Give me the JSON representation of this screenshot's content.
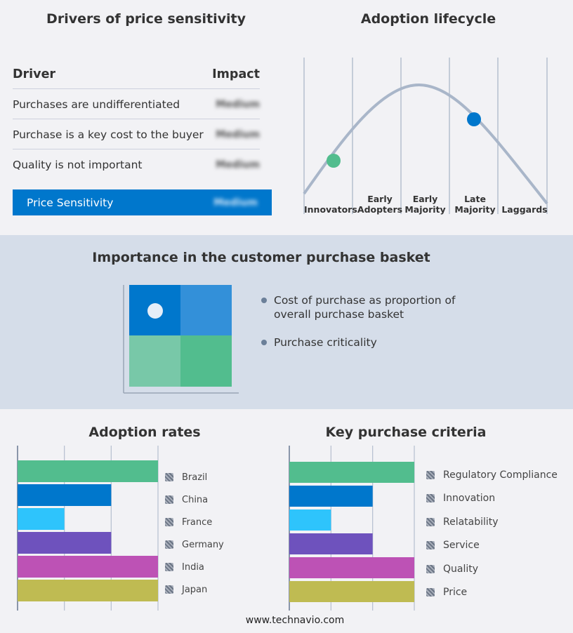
{
  "drivers": {
    "title": "Drivers of price sensitivity",
    "col_driver": "Driver",
    "col_impact": "Impact",
    "rows": [
      {
        "driver": "Purchases are undifferentiated",
        "impact": "Medium"
      },
      {
        "driver": "Purchase is a key cost to the buyer",
        "impact": "Medium"
      },
      {
        "driver": "Quality is not important",
        "impact": "Medium"
      }
    ],
    "summary": {
      "label": "Price Sensitivity",
      "impact": "Medium"
    },
    "accent": "#0077cc"
  },
  "lifecycle": {
    "title": "Adoption lifecycle",
    "stages": [
      [
        "Innovators"
      ],
      [
        "Early",
        "Adopters"
      ],
      [
        "Early",
        "Majority"
      ],
      [
        "Late",
        "Majority"
      ],
      [
        "Laggards"
      ]
    ],
    "markers": [
      {
        "stage": "Innovators",
        "color": "#52bd8e"
      },
      {
        "stage": "Late Majority",
        "color": "#0077cc"
      }
    ]
  },
  "basket": {
    "title": "Importance in the customer purchase basket",
    "bullets": [
      "Cost of purchase as proportion of overall purchase basket",
      "Purchase criticality"
    ],
    "quadrant_colors": [
      "#0077cc",
      "#3390d9",
      "#78c8a8",
      "#52bd8e"
    ],
    "selected_quadrant": "top-left"
  },
  "chart_data": [
    {
      "type": "bar",
      "orientation": "horizontal",
      "title": "Adoption rates",
      "categories": [
        "Brazil",
        "China",
        "France",
        "Germany",
        "India",
        "Japan"
      ],
      "values": [
        3,
        2,
        1,
        2,
        3,
        3
      ],
      "xlim": [
        0,
        3
      ],
      "grid": true,
      "legend": "right",
      "colors": [
        "#52bd8e",
        "#0077cc",
        "#2ec4fc",
        "#6e52bd",
        "#bd52b5",
        "#bfbb52"
      ]
    },
    {
      "type": "bar",
      "orientation": "horizontal",
      "title": "Key purchase criteria",
      "categories": [
        "Regulatory Compliance",
        "Innovation",
        "Relatability",
        "Service",
        "Quality",
        "Price"
      ],
      "values": [
        3,
        2,
        1,
        2,
        3,
        3
      ],
      "xlim": [
        0,
        3
      ],
      "grid": true,
      "legend": "right",
      "colors": [
        "#52bd8e",
        "#0077cc",
        "#2ec4fc",
        "#6e52bd",
        "#bd52b5",
        "#bfbb52"
      ]
    }
  ],
  "footer": {
    "url": "www.technavio.com"
  }
}
